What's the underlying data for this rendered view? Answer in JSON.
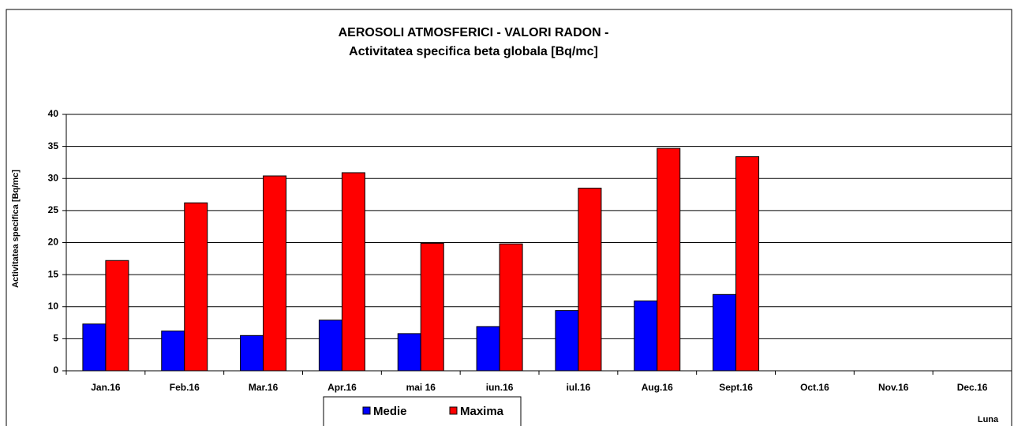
{
  "chart_data": {
    "type": "bar",
    "title": "AEROSOLI ATMOSFERICI - VALORI RADON -",
    "subtitle": "Activitatea specifica beta globala [Bq/mc]",
    "y_label": "Activitatea  specifica  [Bq/mc]",
    "x_label": "Luna",
    "categories": [
      "Jan.16",
      "Feb.16",
      "Mar.16",
      "Apr.16",
      "mai 16",
      "iun.16",
      "iul.16",
      "Aug.16",
      "Sept.16",
      "Oct.16",
      "Nov.16",
      "Dec.16"
    ],
    "series": [
      {
        "name": "Medie",
        "color": "#0000ff",
        "values": [
          7.3,
          6.2,
          5.5,
          7.9,
          5.8,
          6.9,
          9.4,
          10.9,
          11.9,
          null,
          null,
          null
        ]
      },
      {
        "name": "Maxima",
        "color": "#ff0000",
        "values": [
          17.2,
          26.2,
          30.4,
          30.9,
          19.9,
          19.8,
          28.5,
          34.7,
          33.4,
          null,
          null,
          null
        ]
      }
    ],
    "ylim": [
      0,
      40
    ],
    "yticks": [
      0,
      5,
      10,
      15,
      20,
      25,
      30,
      35,
      40
    ],
    "grid": true
  }
}
